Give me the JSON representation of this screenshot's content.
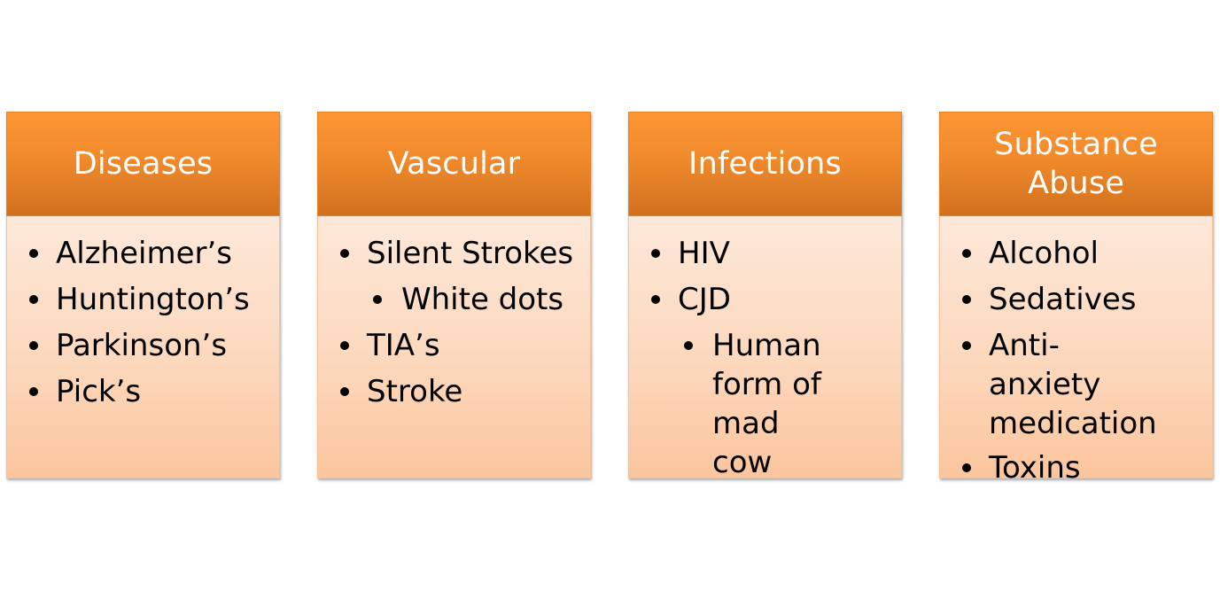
{
  "columns": [
    {
      "title": "Diseases",
      "items": [
        {
          "text": "Alzheimer’s",
          "level": 1
        },
        {
          "text": "Huntington’s",
          "level": 1
        },
        {
          "text": "Parkinson’s",
          "level": 1
        },
        {
          "text": "Pick’s",
          "level": 1
        }
      ]
    },
    {
      "title": "Vascular",
      "items": [
        {
          "text": "Silent Strokes",
          "level": 1
        },
        {
          "text": "White dots",
          "level": 2
        },
        {
          "text": "TIA’s",
          "level": 1
        },
        {
          "text": "Stroke",
          "level": 1
        }
      ]
    },
    {
      "title": "Infections",
      "items": [
        {
          "text": "HIV",
          "level": 1
        },
        {
          "text": "CJD",
          "level": 1
        },
        {
          "text": "Human form of mad cow",
          "level": 2
        }
      ]
    },
    {
      "title": "Substance Abuse",
      "items": [
        {
          "text": "Alcohol",
          "level": 1
        },
        {
          "text": "Sedatives",
          "level": 1
        },
        {
          "text": "Anti-anxiety medication",
          "level": 1
        },
        {
          "text": "Toxins",
          "level": 1
        }
      ]
    }
  ],
  "colors": {
    "header_top": "#fd9533",
    "header_bottom": "#d1701e",
    "body_top": "#fde8d9",
    "body_bottom": "#fbc59d",
    "header_text": "#ffffff",
    "body_text": "#000000"
  }
}
